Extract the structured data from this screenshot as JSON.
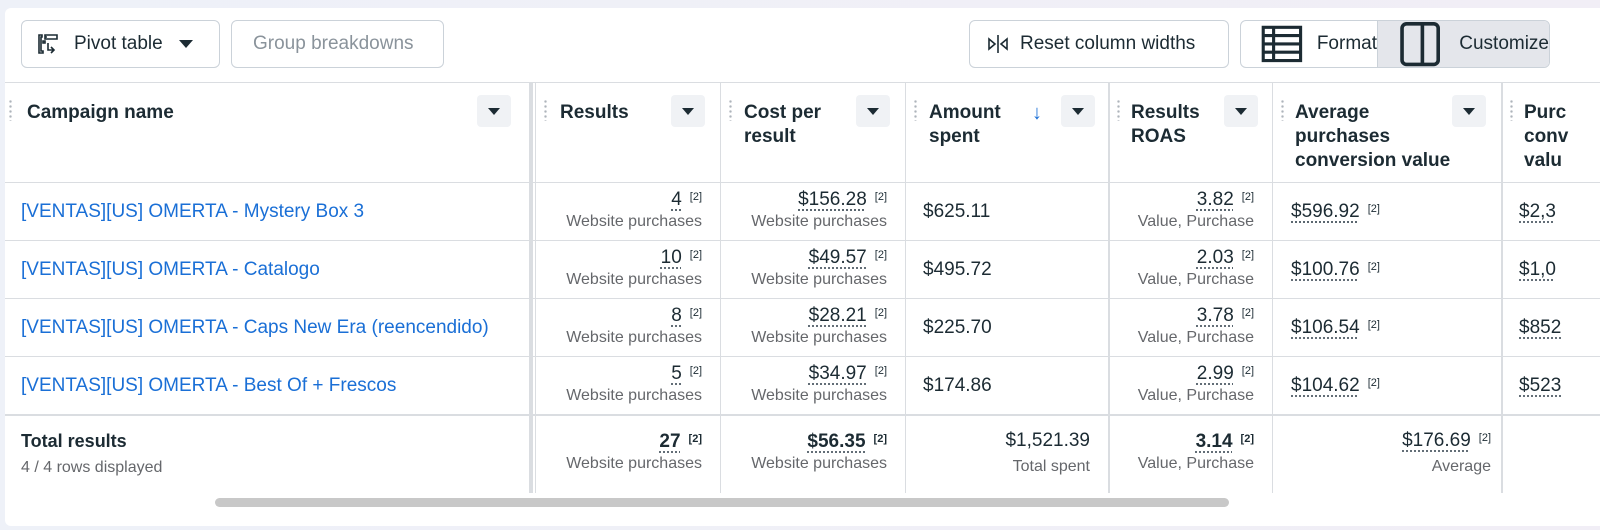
{
  "toolbar": {
    "pivot_label": "Pivot table",
    "group_label": "Group breakdowns",
    "reset_label": "Reset column widths",
    "format_label": "Format",
    "customize_label": "Customize"
  },
  "headers": {
    "campaign": "Campaign name",
    "results": "Results",
    "cost_1": "Cost per",
    "cost_2": "result",
    "amount_1": "Amount",
    "amount_2": "spent",
    "roas_1": "Results",
    "roas_2": "ROAS",
    "avg_1": "Average",
    "avg_2": "purchases",
    "avg_3": "conversion value",
    "purch_1": "Purc",
    "purch_2": "conv",
    "purch_3": "valu"
  },
  "rows": [
    {
      "name": "[VENTAS][US] OMERTA - Mystery Box 3",
      "results": "4",
      "results_sup": "[2]",
      "results_sub": "Website purchases",
      "cpr": "$156.28",
      "cpr_sup": "[2]",
      "cpr_sub": "Website purchases",
      "amount": "$625.11",
      "roas": "3.82",
      "roas_sup": "[2]",
      "roas_sub": "Value, Purchase",
      "avg": "$596.92",
      "avg_sup": "[2]",
      "purch": "$2,3"
    },
    {
      "name": "[VENTAS][US] OMERTA - Catalogo",
      "results": "10",
      "results_sup": "[2]",
      "results_sub": "Website purchases",
      "cpr": "$49.57",
      "cpr_sup": "[2]",
      "cpr_sub": "Website purchases",
      "amount": "$495.72",
      "roas": "2.03",
      "roas_sup": "[2]",
      "roas_sub": "Value, Purchase",
      "avg": "$100.76",
      "avg_sup": "[2]",
      "purch": "$1,0"
    },
    {
      "name": "[VENTAS][US] OMERTA - Caps New Era (reencendido)",
      "results": "8",
      "results_sup": "[2]",
      "results_sub": "Website purchases",
      "cpr": "$28.21",
      "cpr_sup": "[2]",
      "cpr_sub": "Website purchases",
      "amount": "$225.70",
      "roas": "3.78",
      "roas_sup": "[2]",
      "roas_sub": "Value, Purchase",
      "avg": "$106.54",
      "avg_sup": "[2]",
      "purch": "$852"
    },
    {
      "name": "[VENTAS][US] OMERTA - Best Of + Frescos",
      "results": "5",
      "results_sup": "[2]",
      "results_sub": "Website purchases",
      "cpr": "$34.97",
      "cpr_sup": "[2]",
      "cpr_sub": "Website purchases",
      "amount": "$174.86",
      "roas": "2.99",
      "roas_sup": "[2]",
      "roas_sub": "Value, Purchase",
      "avg": "$104.62",
      "avg_sup": "[2]",
      "purch": "$523"
    }
  ],
  "totals": {
    "label": "Total results",
    "rows_displayed": "4 / 4 rows displayed",
    "results": "27",
    "results_sup": "[2]",
    "results_sub": "Website purchases",
    "cpr": "$56.35",
    "cpr_sup": "[2]",
    "cpr_sub": "Website purchases",
    "amount": "$1,521.39",
    "amount_sub": "Total spent",
    "roas": "3.14",
    "roas_sup": "[2]",
    "roas_sub": "Value, Purchase",
    "avg": "$176.69",
    "avg_sup": "[2]",
    "avg_sub": "Average"
  }
}
